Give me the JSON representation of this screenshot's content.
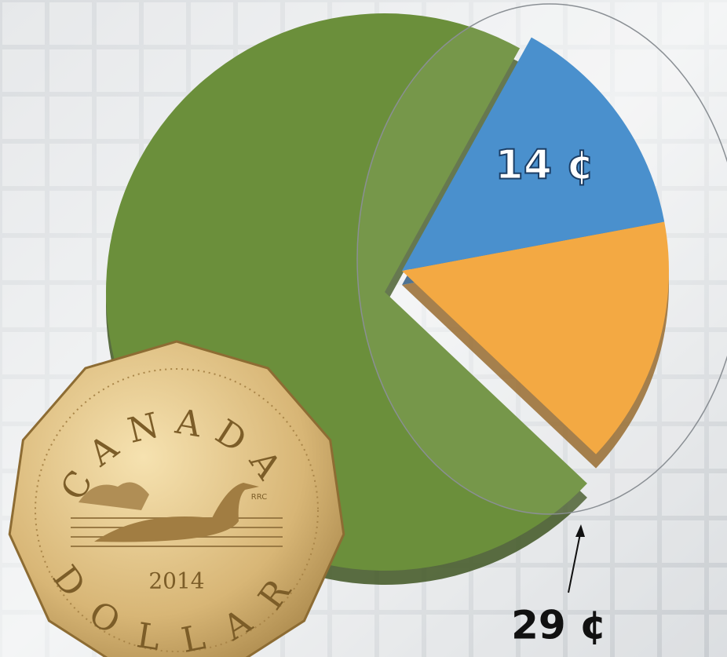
{
  "chart_data": {
    "type": "pie",
    "categories": [
      null,
      null,
      null
    ],
    "values": [
      14,
      15,
      71
    ],
    "value_labels": [
      "14 ¢",
      null,
      null
    ],
    "colors": [
      "#3b87c9",
      "#f2a233",
      "#6b8f3b"
    ],
    "annotations": [
      "29 ¢"
    ]
  },
  "coin": {
    "top_text": "CANADA",
    "bottom_text": "DOLLAR",
    "year": "2014",
    "initials": "RRC"
  }
}
